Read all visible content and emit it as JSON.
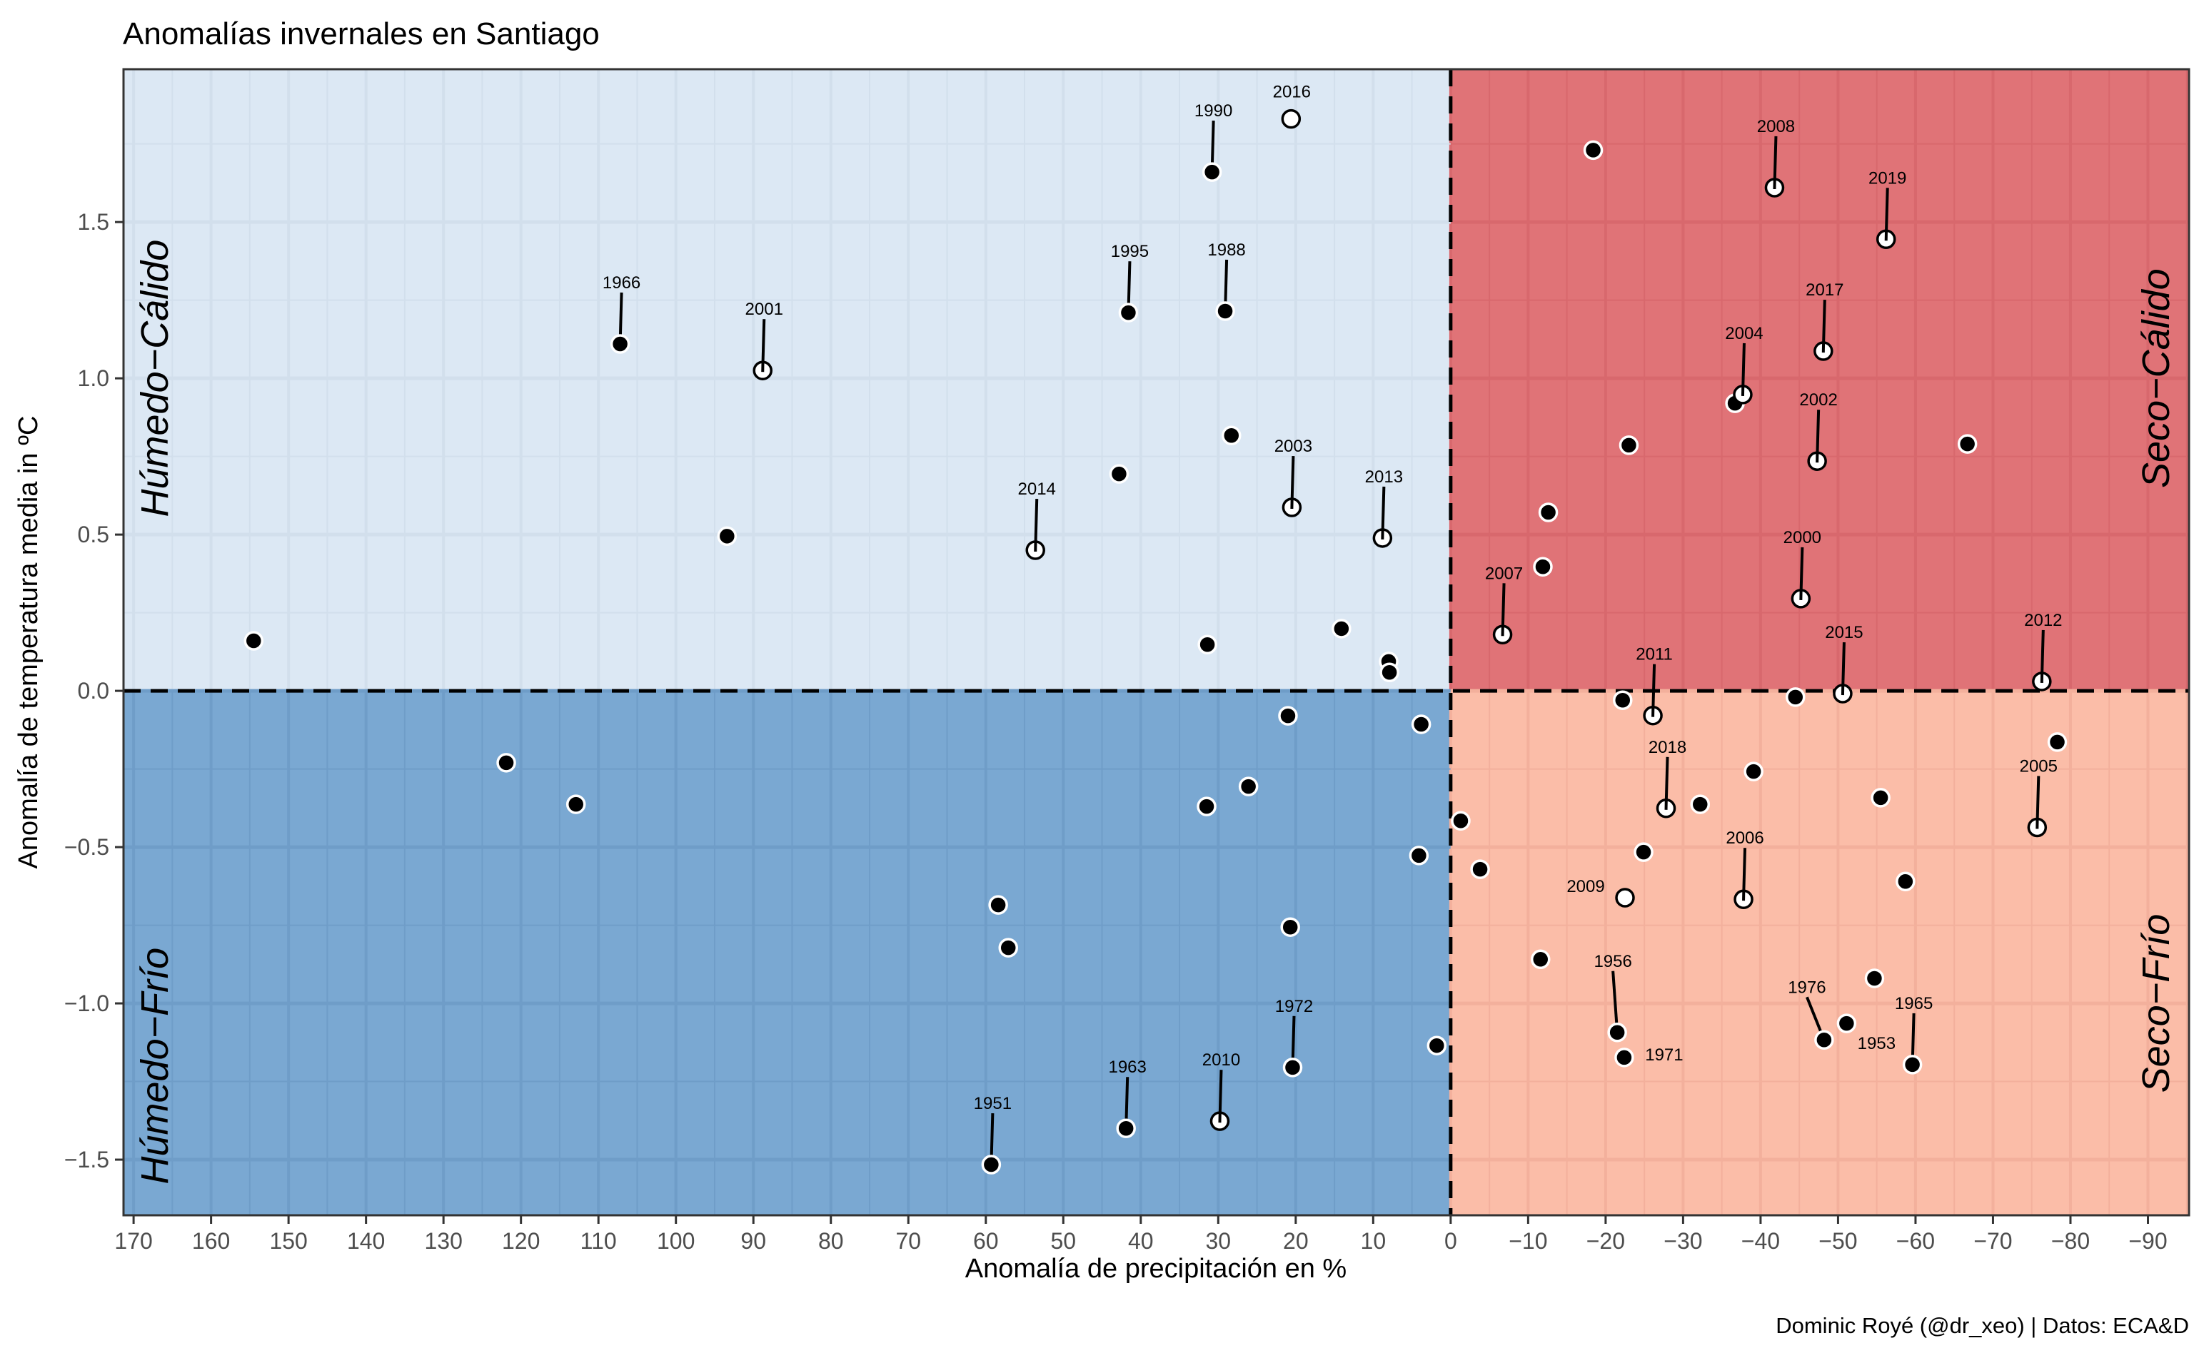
{
  "chart_data": {
    "type": "scatter",
    "title": "Anomalías invernales en Santiago",
    "xlabel": "Anomalía de precipitación en %",
    "ylabel": "Anomalía de temperatura media in ºC",
    "caption": "Dominic Royé (@dr_xeo) | Datos: ECA&D",
    "x_reversed": true,
    "xlim": [
      171.3,
      -95.3
    ],
    "ylim": [
      -1.678,
      1.989
    ],
    "x_ticks": [
      170,
      160,
      150,
      140,
      130,
      120,
      110,
      100,
      90,
      80,
      70,
      60,
      50,
      40,
      30,
      20,
      10,
      0,
      -10,
      -20,
      -30,
      -40,
      -50,
      -60,
      -70,
      -80,
      -90
    ],
    "x_tick_labels": [
      "170",
      "160",
      "150",
      "140",
      "130",
      "120",
      "110",
      "100",
      "90",
      "80",
      "70",
      "60",
      "50",
      "40",
      "30",
      "20",
      "10",
      "0",
      "−10",
      "−20",
      "−30",
      "−40",
      "−50",
      "−60",
      "−70",
      "−80",
      "−90"
    ],
    "y_ticks": [
      1.5,
      1.0,
      0.5,
      0.0,
      -0.5,
      -1.0,
      -1.5
    ],
    "y_tick_labels": [
      "1.5",
      "1.0",
      "0.5",
      "0.0",
      "−0.5",
      "−1.0",
      "−1.5"
    ],
    "grid": true,
    "reference_lines": {
      "x": 0,
      "y": 0,
      "style": "dashed"
    },
    "quadrants": [
      {
        "name": "humedo-calido",
        "label": "Húmedo−Cálido",
        "color": "#dce8f4",
        "grid_color": "#d2dfec",
        "position": "top-left"
      },
      {
        "name": "seco-calido",
        "label": "Seco−Cálido",
        "color": "#e07377",
        "grid_color": "#d8686d",
        "position": "top-right"
      },
      {
        "name": "humedo-frio",
        "label": "Húmedo−Frío",
        "color": "#7aa8d2",
        "grid_color": "#6f9dc8",
        "position": "bottom-left"
      },
      {
        "name": "seco-frio",
        "label": "Seco−Frío",
        "color": "#fbbda8",
        "grid_color": "#f3b09c",
        "position": "bottom-right"
      }
    ],
    "legend": "none",
    "points": [
      {
        "x": 154.5,
        "y": 0.16,
        "label": "",
        "open": false
      },
      {
        "x": 107.2,
        "y": 1.11,
        "label": "1966",
        "open": false
      },
      {
        "x": 93.4,
        "y": 0.495,
        "label": "",
        "open": false
      },
      {
        "x": 88.8,
        "y": 1.025,
        "label": "2001",
        "open": true
      },
      {
        "x": 53.6,
        "y": 0.45,
        "label": "2014",
        "open": true
      },
      {
        "x": 42.8,
        "y": 0.694,
        "label": "",
        "open": false
      },
      {
        "x": 41.6,
        "y": 1.21,
        "label": "1995",
        "open": false
      },
      {
        "x": 30.8,
        "y": 1.66,
        "label": "1990",
        "open": false
      },
      {
        "x": 29.1,
        "y": 1.215,
        "label": "1988",
        "open": false
      },
      {
        "x": 28.3,
        "y": 0.817,
        "label": "",
        "open": false
      },
      {
        "x": 20.6,
        "y": 1.83,
        "label": "2016",
        "open": true
      },
      {
        "x": 20.5,
        "y": 0.587,
        "label": "2003",
        "open": true
      },
      {
        "x": 8.8,
        "y": 0.489,
        "label": "2013",
        "open": true
      },
      {
        "x": 31.4,
        "y": 0.148,
        "label": "",
        "open": false
      },
      {
        "x": 14.1,
        "y": 0.199,
        "label": "",
        "open": false
      },
      {
        "x": 8.0,
        "y": 0.094,
        "label": "",
        "open": false
      },
      {
        "x": 7.9,
        "y": 0.059,
        "label": "",
        "open": false
      },
      {
        "x": -18.4,
        "y": 1.73,
        "label": "",
        "open": false
      },
      {
        "x": -41.8,
        "y": 1.61,
        "label": "2008",
        "open": true
      },
      {
        "x": -56.2,
        "y": 1.445,
        "label": "2019",
        "open": true
      },
      {
        "x": -48.1,
        "y": 1.087,
        "label": "2017",
        "open": true
      },
      {
        "x": -36.7,
        "y": 0.92,
        "label": "",
        "open": false
      },
      {
        "x": -37.7,
        "y": 0.948,
        "label": "2004",
        "open": true
      },
      {
        "x": -47.3,
        "y": 0.735,
        "label": "2002",
        "open": true
      },
      {
        "x": -23.0,
        "y": 0.786,
        "label": "",
        "open": false
      },
      {
        "x": -66.7,
        "y": 0.79,
        "label": "",
        "open": false
      },
      {
        "x": -12.6,
        "y": 0.571,
        "label": "",
        "open": false
      },
      {
        "x": -11.9,
        "y": 0.397,
        "label": "",
        "open": false
      },
      {
        "x": -45.2,
        "y": 0.295,
        "label": "2000",
        "open": true
      },
      {
        "x": -6.7,
        "y": 0.18,
        "label": "2007",
        "open": true
      },
      {
        "x": -76.3,
        "y": 0.03,
        "label": "2012",
        "open": true
      },
      {
        "x": -50.6,
        "y": -0.009,
        "label": "2015",
        "open": true
      },
      {
        "x": -22.2,
        "y": -0.03,
        "label": "",
        "open": false
      },
      {
        "x": -44.5,
        "y": -0.02,
        "label": "",
        "open": false
      },
      {
        "x": -26.1,
        "y": -0.079,
        "label": "2011",
        "open": true
      },
      {
        "x": 21.0,
        "y": -0.08,
        "label": "",
        "open": false
      },
      {
        "x": 3.8,
        "y": -0.107,
        "label": "",
        "open": false
      },
      {
        "x": 26.1,
        "y": -0.306,
        "label": "",
        "open": false
      },
      {
        "x": 31.5,
        "y": -0.37,
        "label": "",
        "open": false
      },
      {
        "x": 4.1,
        "y": -0.527,
        "label": "",
        "open": false
      },
      {
        "x": 121.9,
        "y": -0.23,
        "label": "",
        "open": false
      },
      {
        "x": 112.9,
        "y": -0.363,
        "label": "",
        "open": false
      },
      {
        "x": 58.4,
        "y": -0.685,
        "label": "",
        "open": false
      },
      {
        "x": 57.1,
        "y": -0.822,
        "label": "",
        "open": false
      },
      {
        "x": 20.7,
        "y": -0.756,
        "label": "",
        "open": false
      },
      {
        "x": 1.8,
        "y": -1.135,
        "label": "",
        "open": false
      },
      {
        "x": 20.4,
        "y": -1.205,
        "label": "1972",
        "open": false
      },
      {
        "x": 29.8,
        "y": -1.377,
        "label": "2010",
        "open": true
      },
      {
        "x": 41.9,
        "y": -1.4,
        "label": "1963",
        "open": false
      },
      {
        "x": 59.3,
        "y": -1.516,
        "label": "1951",
        "open": false
      },
      {
        "x": -1.3,
        "y": -0.416,
        "label": "",
        "open": false
      },
      {
        "x": -3.8,
        "y": -0.571,
        "label": "",
        "open": false
      },
      {
        "x": -39.1,
        "y": -0.258,
        "label": "",
        "open": false
      },
      {
        "x": -27.8,
        "y": -0.376,
        "label": "2018",
        "open": true
      },
      {
        "x": -32.2,
        "y": -0.363,
        "label": "",
        "open": false
      },
      {
        "x": -55.5,
        "y": -0.342,
        "label": "",
        "open": false
      },
      {
        "x": -24.9,
        "y": -0.516,
        "label": "",
        "open": false
      },
      {
        "x": -22.5,
        "y": -0.662,
        "label": "2009",
        "open": true
      },
      {
        "x": -37.8,
        "y": -0.667,
        "label": "2006",
        "open": true
      },
      {
        "x": -58.7,
        "y": -0.61,
        "label": "",
        "open": false
      },
      {
        "x": -78.3,
        "y": -0.164,
        "label": "",
        "open": false
      },
      {
        "x": -75.7,
        "y": -0.437,
        "label": "2005",
        "open": true
      },
      {
        "x": -11.6,
        "y": -0.859,
        "label": "",
        "open": false
      },
      {
        "x": -21.5,
        "y": -1.093,
        "label": "1956",
        "open": false
      },
      {
        "x": -22.4,
        "y": -1.173,
        "label": "1971",
        "open": false
      },
      {
        "x": -54.7,
        "y": -0.92,
        "label": "",
        "open": false
      },
      {
        "x": -51.1,
        "y": -1.064,
        "label": "1953",
        "open": false
      },
      {
        "x": -48.2,
        "y": -1.117,
        "label": "1976",
        "open": false
      },
      {
        "x": -59.6,
        "y": -1.196,
        "label": "1965",
        "open": false
      }
    ]
  }
}
